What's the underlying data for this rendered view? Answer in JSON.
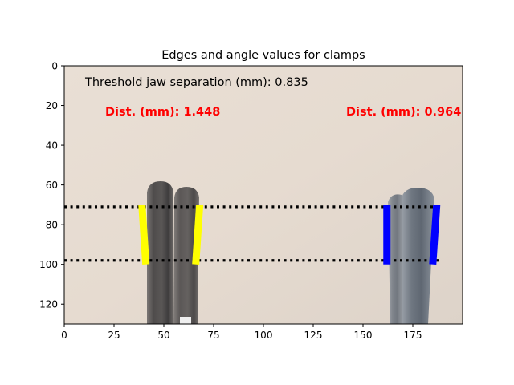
{
  "title": "Edges and angle values for clamps",
  "threshold_text": "Threshold jaw separation (mm): 0.835",
  "measurements": [
    {
      "label": "Dist. (mm): 1.448",
      "color": "#ff0000"
    },
    {
      "label": "Dist. (mm): 0.964",
      "color": "#ff0000"
    }
  ],
  "chart_data": {
    "type": "image",
    "xlim": [
      0,
      200
    ],
    "ylim": [
      130,
      0
    ],
    "x_ticks": [
      0,
      25,
      50,
      75,
      100,
      125,
      150,
      175
    ],
    "y_ticks": [
      0,
      20,
      40,
      60,
      80,
      100,
      120
    ],
    "text_annotations": [
      {
        "text": "Threshold jaw separation (mm): 0.835",
        "x": 10,
        "y": 8,
        "color": "#000000"
      },
      {
        "text": "Dist. (mm): 1.448",
        "x": 20,
        "y": 23,
        "color": "#ff0000"
      },
      {
        "text": "Dist. (mm): 0.964",
        "x": 142,
        "y": 23,
        "color": "#ff0000"
      }
    ],
    "horizontal_dotted_lines": [
      {
        "y": 71,
        "x": [
          0,
          188
        ],
        "color": "#000000"
      },
      {
        "y": 98,
        "x": [
          0,
          188
        ],
        "color": "#000000"
      }
    ],
    "edge_lines": [
      {
        "clamp": 1,
        "color": "#ffff00",
        "from": [
          39,
          70
        ],
        "to": [
          41,
          100
        ]
      },
      {
        "clamp": 1,
        "color": "#ffff00",
        "from": [
          68,
          70
        ],
        "to": [
          66,
          100
        ]
      },
      {
        "clamp": 2,
        "color": "#0000ff",
        "from": [
          162,
          70
        ],
        "to": [
          162,
          100
        ]
      },
      {
        "clamp": 2,
        "color": "#0000ff",
        "from": [
          187,
          70
        ],
        "to": [
          185,
          100
        ]
      }
    ],
    "background_color": "#e8ddd3"
  }
}
